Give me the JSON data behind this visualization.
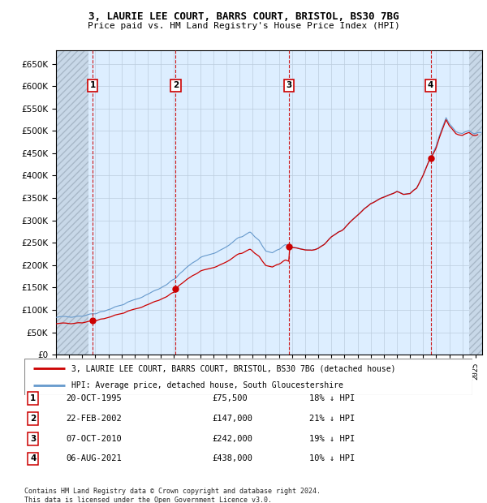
{
  "title_line1": "3, LAURIE LEE COURT, BARRS COURT, BRISTOL, BS30 7BG",
  "title_line2": "Price paid vs. HM Land Registry's House Price Index (HPI)",
  "ylim": [
    0,
    680000
  ],
  "yticks": [
    0,
    50000,
    100000,
    150000,
    200000,
    250000,
    300000,
    350000,
    400000,
    450000,
    500000,
    550000,
    600000,
    650000
  ],
  "xlim_start": 1993.0,
  "xlim_end": 2025.5,
  "sales": [
    {
      "num": 1,
      "year": 1995.79,
      "price": 75500,
      "date": "20-OCT-1995",
      "pct": "18%"
    },
    {
      "num": 2,
      "year": 2002.12,
      "price": 147000,
      "date": "22-FEB-2002",
      "pct": "21%"
    },
    {
      "num": 3,
      "year": 2010.77,
      "price": 242000,
      "date": "07-OCT-2010",
      "pct": "19%"
    },
    {
      "num": 4,
      "year": 2021.58,
      "price": 438000,
      "date": "06-AUG-2021",
      "pct": "10%"
    }
  ],
  "sale_color": "#cc0000",
  "hpi_color": "#6699cc",
  "bg_color": "#ddeeff",
  "grid_color": "#bbccdd",
  "hatch_color": "#c8d8e8",
  "legend_line1": "3, LAURIE LEE COURT, BARRS COURT, BRISTOL, BS30 7BG (detached house)",
  "legend_line2": "HPI: Average price, detached house, South Gloucestershire",
  "footer": "Contains HM Land Registry data © Crown copyright and database right 2024.\nThis data is licensed under the Open Government Licence v3.0."
}
